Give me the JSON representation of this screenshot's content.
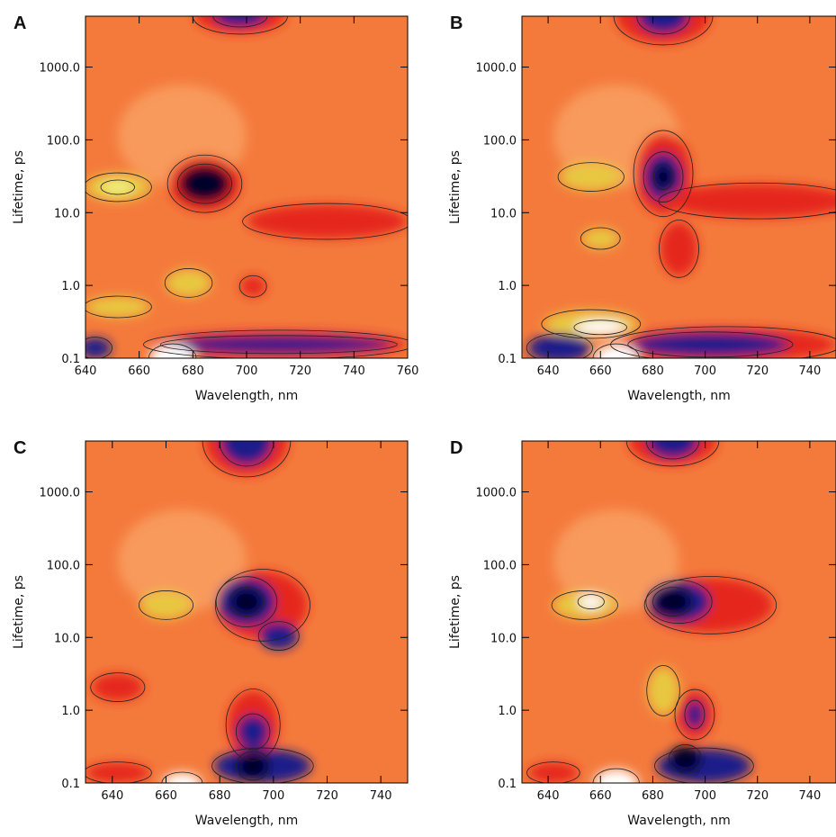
{
  "chart_data": [
    {
      "type": "contour",
      "title": "A",
      "xlabel": "Wavelength, nm",
      "ylabel": "Lifetime, ps",
      "xlim": [
        640,
        760
      ],
      "xticks": [
        640,
        660,
        680,
        700,
        720,
        740,
        760
      ],
      "ylim": [
        0.1,
        5000
      ],
      "log_y": true,
      "yticks": [
        0.1,
        {
          "value": 1,
          "label": "1.0"
        },
        {
          "value": 10,
          "label": "10.0"
        },
        {
          "value": 100,
          "label": "100.0"
        },
        {
          "value": 1000,
          "label": "1000.0"
        }
      ]
    },
    {
      "type": "contour",
      "title": "B",
      "xlabel": "Wavelength, nm",
      "ylabel": "Lifetime, ps",
      "xlim": [
        630,
        750
      ],
      "xticks": [
        640,
        660,
        680,
        700,
        720,
        740
      ],
      "ylim": [
        0.1,
        5000
      ],
      "log_y": true,
      "yticks": [
        0.1,
        {
          "value": 1,
          "label": "1.0"
        },
        {
          "value": 10,
          "label": "10.0"
        },
        {
          "value": 100,
          "label": "100.0"
        },
        {
          "value": 1000,
          "label": "1000.0"
        }
      ]
    },
    {
      "type": "contour",
      "title": "C",
      "xlabel": "Wavelength, nm",
      "ylabel": "Lifetime, ps",
      "xlim": [
        630,
        750
      ],
      "xticks": [
        640,
        660,
        680,
        700,
        720,
        740
      ],
      "ylim": [
        0.1,
        5000
      ],
      "log_y": true,
      "yticks": [
        0.1,
        {
          "value": 1,
          "label": "1.0"
        },
        {
          "value": 10,
          "label": "10.0"
        },
        {
          "value": 100,
          "label": "100.0"
        },
        {
          "value": 1000,
          "label": "1000.0"
        }
      ]
    },
    {
      "type": "contour",
      "title": "D",
      "xlabel": "Wavelength, nm",
      "ylabel": "Lifetime, ps",
      "xlim": [
        630,
        750
      ],
      "xticks": [
        640,
        660,
        680,
        700,
        720,
        740
      ],
      "ylim": [
        0.1,
        5000
      ],
      "log_y": true,
      "yticks": [
        0.1,
        {
          "value": 1,
          "label": "1.0"
        },
        {
          "value": 10,
          "label": "10.0"
        },
        {
          "value": 100,
          "label": "100.0"
        },
        {
          "value": 1000,
          "label": "1000.0"
        }
      ]
    }
  ]
}
